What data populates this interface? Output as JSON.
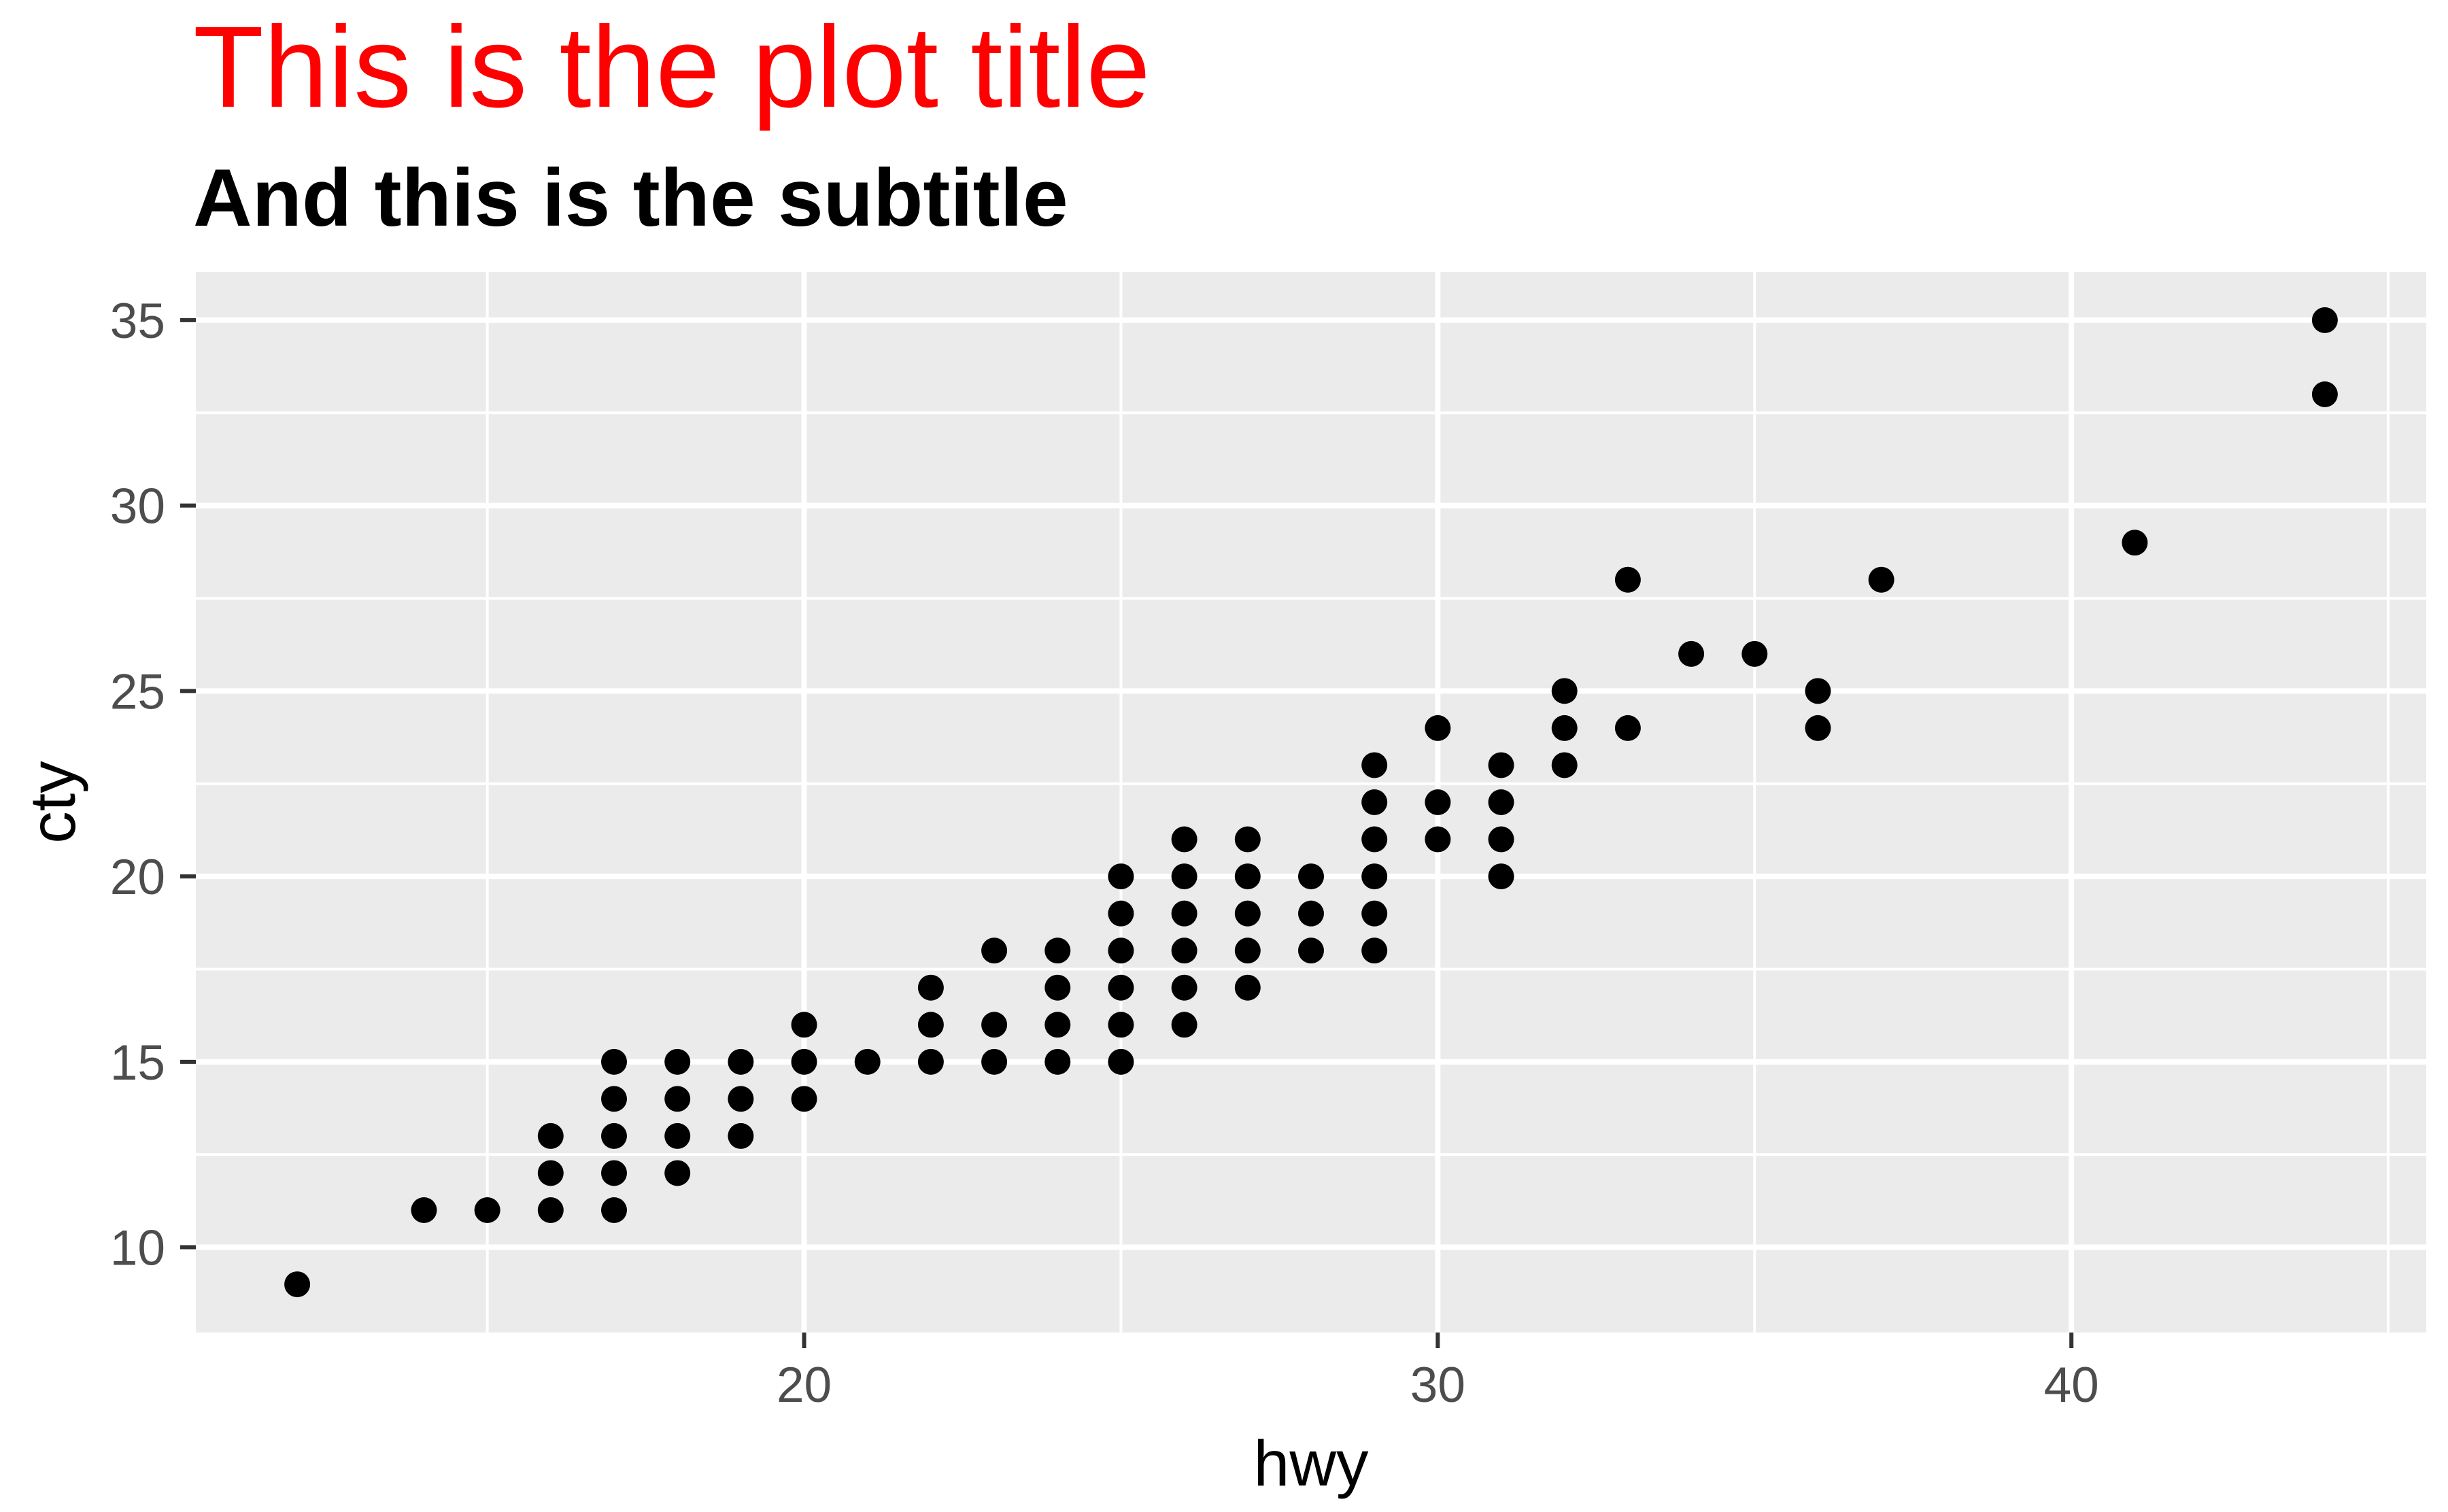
{
  "chart_data": {
    "type": "scatter",
    "title": "This is the plot title",
    "subtitle": "And this is the subtitle",
    "xlabel": "hwy",
    "ylabel": "cty",
    "xlim": [
      10.4,
      45.6
    ],
    "ylim": [
      7.7,
      36.3
    ],
    "x_major_ticks": [
      20,
      30,
      40
    ],
    "x_minor_gridlines": [
      15,
      25,
      35,
      45
    ],
    "y_major_ticks": [
      10,
      15,
      20,
      25,
      30,
      35
    ],
    "y_minor_gridlines": [
      12.5,
      17.5,
      22.5,
      27.5,
      32.5
    ],
    "grid": "white major and minor gridlines on gray panel",
    "legend_position": "none",
    "point_radius": 19,
    "points": [
      [
        12,
        9
      ],
      [
        14,
        11
      ],
      [
        15,
        11
      ],
      [
        16,
        11
      ],
      [
        17,
        11
      ],
      [
        16,
        12
      ],
      [
        17,
        12
      ],
      [
        18,
        12
      ],
      [
        16,
        13
      ],
      [
        17,
        13
      ],
      [
        18,
        13
      ],
      [
        19,
        13
      ],
      [
        17,
        14
      ],
      [
        18,
        14
      ],
      [
        19,
        14
      ],
      [
        20,
        14
      ],
      [
        17,
        15
      ],
      [
        18,
        15
      ],
      [
        19,
        15
      ],
      [
        20,
        15
      ],
      [
        21,
        15
      ],
      [
        22,
        15
      ],
      [
        23,
        15
      ],
      [
        24,
        15
      ],
      [
        25,
        15
      ],
      [
        20,
        16
      ],
      [
        22,
        16
      ],
      [
        23,
        16
      ],
      [
        24,
        16
      ],
      [
        25,
        16
      ],
      [
        26,
        16
      ],
      [
        22,
        17
      ],
      [
        24,
        17
      ],
      [
        25,
        17
      ],
      [
        26,
        17
      ],
      [
        27,
        17
      ],
      [
        23,
        18
      ],
      [
        24,
        18
      ],
      [
        25,
        18
      ],
      [
        26,
        18
      ],
      [
        27,
        18
      ],
      [
        28,
        18
      ],
      [
        29,
        18
      ],
      [
        25,
        19
      ],
      [
        26,
        19
      ],
      [
        27,
        19
      ],
      [
        28,
        19
      ],
      [
        29,
        19
      ],
      [
        25,
        20
      ],
      [
        26,
        20
      ],
      [
        27,
        20
      ],
      [
        28,
        20
      ],
      [
        29,
        20
      ],
      [
        31,
        20
      ],
      [
        26,
        21
      ],
      [
        27,
        21
      ],
      [
        29,
        21
      ],
      [
        30,
        21
      ],
      [
        31,
        21
      ],
      [
        29,
        22
      ],
      [
        30,
        22
      ],
      [
        31,
        22
      ],
      [
        29,
        23
      ],
      [
        31,
        23
      ],
      [
        32,
        23
      ],
      [
        30,
        24
      ],
      [
        32,
        24
      ],
      [
        33,
        24
      ],
      [
        36,
        24
      ],
      [
        32,
        25
      ],
      [
        36,
        25
      ],
      [
        34,
        26
      ],
      [
        35,
        26
      ],
      [
        33,
        28
      ],
      [
        37,
        28
      ],
      [
        41,
        29
      ],
      [
        44,
        33
      ],
      [
        44,
        35
      ]
    ]
  },
  "style": {
    "title_color": "#FF0000",
    "subtitle_color": "#000000",
    "panel_background": "#EBEBEB",
    "gridline_color": "#FFFFFF",
    "point_color": "#000000",
    "axis_text_color": "#4D4D4D",
    "tick_mark_color": "#333333",
    "axis_title_color": "#000000",
    "background": "#FFFFFF"
  }
}
